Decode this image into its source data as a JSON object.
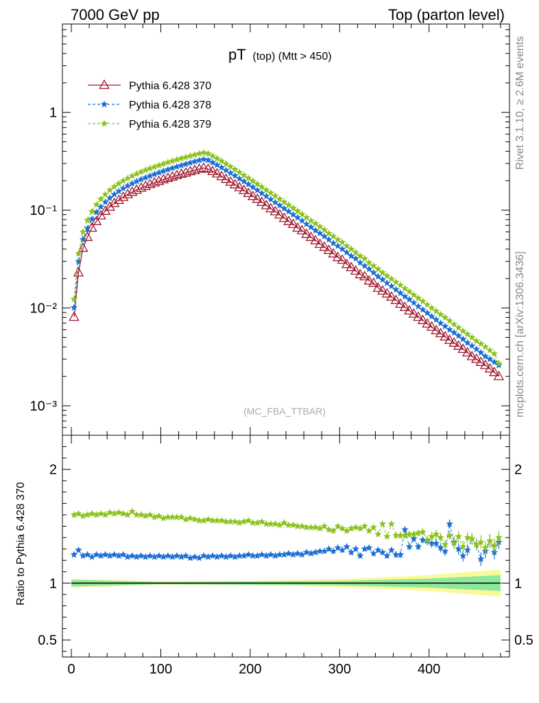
{
  "header": {
    "left": "7000 GeV pp",
    "right": "Top (parton level)"
  },
  "side_labels": {
    "rivet": "Rivet 3.1.10, ≥ 2.6M events",
    "source": "mcplots.cern.ch [arXiv:1306.3436]"
  },
  "colors": {
    "s370": "#a0192d",
    "s378": "#1a6fd4",
    "s379": "#8cc21e",
    "band_inner": "#8de89c",
    "band_outer": "#fafa9a"
  },
  "chart_data": [
    {
      "type": "line",
      "title": "pT",
      "title_sub": "(top) (Mtt > 450)",
      "watermark": "(MC_FBA_TTBAR)",
      "xlim": [
        -10,
        490
      ],
      "ylim": [
        0.0005,
        8
      ],
      "yscale": "log",
      "ytick_labels": [
        "10⁻³",
        "10⁻²",
        "10⁻¹",
        "1"
      ],
      "ytick_values": [
        0.001,
        0.01,
        0.1,
        1
      ],
      "legend_position": "top-left",
      "x": [
        3,
        8,
        13,
        18,
        23,
        28,
        33,
        38,
        43,
        48,
        53,
        58,
        63,
        68,
        73,
        78,
        83,
        88,
        93,
        98,
        103,
        108,
        113,
        118,
        123,
        128,
        133,
        138,
        143,
        148,
        153,
        158,
        163,
        168,
        173,
        178,
        183,
        188,
        193,
        198,
        203,
        208,
        213,
        218,
        223,
        228,
        233,
        238,
        243,
        248,
        253,
        258,
        263,
        268,
        273,
        278,
        283,
        288,
        293,
        298,
        303,
        308,
        313,
        318,
        323,
        328,
        333,
        338,
        343,
        348,
        353,
        358,
        363,
        368,
        373,
        378,
        383,
        388,
        393,
        398,
        403,
        408,
        413,
        418,
        423,
        428,
        433,
        438,
        443,
        448,
        453,
        458,
        463,
        468,
        473,
        478
      ],
      "series": [
        {
          "name": "Pythia 6.428 370",
          "values": [
            0.0081,
            0.023,
            0.041,
            0.053,
            0.066,
            0.077,
            0.088,
            0.098,
            0.108,
            0.118,
            0.127,
            0.136,
            0.145,
            0.153,
            0.161,
            0.169,
            0.176,
            0.184,
            0.191,
            0.198,
            0.206,
            0.213,
            0.22,
            0.227,
            0.234,
            0.241,
            0.249,
            0.256,
            0.264,
            0.27,
            0.264,
            0.25,
            0.236,
            0.222,
            0.208,
            0.195,
            0.183,
            0.171,
            0.16,
            0.149,
            0.139,
            0.13,
            0.121,
            0.112,
            0.104,
            0.097,
            0.09,
            0.083,
            0.077,
            0.072,
            0.066,
            0.062,
            0.057,
            0.053,
            0.049,
            0.045,
            0.042,
            0.039,
            0.036,
            0.033,
            0.031,
            0.028,
            0.026,
            0.024,
            0.022,
            0.021,
            0.019,
            0.018,
            0.016,
            0.015,
            0.014,
            0.013,
            0.012,
            0.011,
            0.0102,
            0.0094,
            0.0087,
            0.0081,
            0.0075,
            0.0069,
            0.0064,
            0.0059,
            0.0055,
            0.0051,
            0.0047,
            0.0044,
            0.0041,
            0.0038,
            0.0035,
            0.0032,
            0.003,
            0.0028,
            0.0026,
            0.0024,
            0.0022,
            0.002
          ]
        },
        {
          "name": "Pythia 6.428 378",
          "values": [
            0.0101,
            0.03,
            0.05,
            0.065,
            0.081,
            0.095,
            0.108,
            0.121,
            0.133,
            0.145,
            0.156,
            0.167,
            0.177,
            0.187,
            0.197,
            0.206,
            0.215,
            0.224,
            0.233,
            0.242,
            0.251,
            0.26,
            0.269,
            0.278,
            0.287,
            0.296,
            0.305,
            0.314,
            0.323,
            0.331,
            0.324,
            0.307,
            0.29,
            0.273,
            0.256,
            0.24,
            0.225,
            0.21,
            0.197,
            0.184,
            0.172,
            0.16,
            0.149,
            0.139,
            0.129,
            0.12,
            0.112,
            0.104,
            0.097,
            0.09,
            0.084,
            0.078,
            0.072,
            0.067,
            0.062,
            0.058,
            0.054,
            0.05,
            0.046,
            0.043,
            0.04,
            0.037,
            0.034,
            0.032,
            0.029,
            0.027,
            0.025,
            0.023,
            0.021,
            0.0195,
            0.018,
            0.0167,
            0.0154,
            0.0142,
            0.0131,
            0.0122,
            0.0113,
            0.0104,
            0.0096,
            0.0089,
            0.0082,
            0.0076,
            0.007,
            0.0065,
            0.006,
            0.0056,
            0.0052,
            0.0048,
            0.0044,
            0.0041,
            0.0038,
            0.0035,
            0.0032,
            0.003,
            0.0028,
            0.0026
          ]
        },
        {
          "name": "Pythia 6.428 379",
          "values": [
            0.0123,
            0.036,
            0.06,
            0.079,
            0.097,
            0.114,
            0.13,
            0.145,
            0.16,
            0.174,
            0.187,
            0.2,
            0.212,
            0.224,
            0.235,
            0.246,
            0.257,
            0.267,
            0.277,
            0.287,
            0.298,
            0.308,
            0.318,
            0.328,
            0.338,
            0.348,
            0.358,
            0.368,
            0.378,
            0.387,
            0.378,
            0.358,
            0.338,
            0.318,
            0.298,
            0.279,
            0.261,
            0.244,
            0.228,
            0.213,
            0.199,
            0.185,
            0.173,
            0.161,
            0.15,
            0.14,
            0.13,
            0.121,
            0.113,
            0.105,
            0.098,
            0.091,
            0.084,
            0.078,
            0.073,
            0.068,
            0.063,
            0.058,
            0.054,
            0.05,
            0.047,
            0.043,
            0.04,
            0.037,
            0.034,
            0.032,
            0.029,
            0.027,
            0.025,
            0.023,
            0.0213,
            0.0198,
            0.0184,
            0.0171,
            0.0158,
            0.0147,
            0.0136,
            0.0126,
            0.0117,
            0.0108,
            0.01,
            0.0093,
            0.0086,
            0.008,
            0.0074,
            0.0068,
            0.0063,
            0.0058,
            0.0054,
            0.005,
            0.0046,
            0.0043,
            0.004,
            0.0037,
            0.0034,
            0.0027
          ]
        }
      ]
    },
    {
      "type": "scatter",
      "ylabel": "Ratio to Pythia 6.428 370",
      "xlim": [
        -10,
        490
      ],
      "ylim": [
        0.35,
        2.3
      ],
      "xtick_labels": [
        "0",
        "100",
        "200",
        "300",
        "400"
      ],
      "xtick_values": [
        0,
        100,
        200,
        300,
        400
      ],
      "ytick_labels": [
        "0.5",
        "1",
        "2"
      ],
      "ytick_values": [
        0.5,
        1,
        2
      ],
      "x": [
        3,
        8,
        13,
        18,
        23,
        28,
        33,
        38,
        43,
        48,
        53,
        58,
        63,
        68,
        73,
        78,
        83,
        88,
        93,
        98,
        103,
        108,
        113,
        118,
        123,
        128,
        133,
        138,
        143,
        148,
        153,
        158,
        163,
        168,
        173,
        178,
        183,
        188,
        193,
        198,
        203,
        208,
        213,
        218,
        223,
        228,
        233,
        238,
        243,
        248,
        253,
        258,
        263,
        268,
        273,
        278,
        283,
        288,
        293,
        298,
        303,
        308,
        313,
        318,
        323,
        328,
        333,
        338,
        343,
        348,
        353,
        358,
        363,
        368,
        373,
        378,
        383,
        388,
        393,
        398,
        403,
        408,
        413,
        418,
        423,
        428,
        433,
        438,
        443,
        448,
        453,
        458,
        463,
        468,
        473,
        478
      ],
      "series": [
        {
          "name": "Pythia 6.428 378",
          "values": [
            1.25,
            1.29,
            1.24,
            1.25,
            1.23,
            1.25,
            1.24,
            1.25,
            1.24,
            1.25,
            1.24,
            1.25,
            1.23,
            1.24,
            1.23,
            1.24,
            1.23,
            1.24,
            1.23,
            1.24,
            1.23,
            1.24,
            1.23,
            1.24,
            1.23,
            1.24,
            1.22,
            1.23,
            1.22,
            1.24,
            1.23,
            1.24,
            1.23,
            1.24,
            1.23,
            1.24,
            1.23,
            1.24,
            1.24,
            1.25,
            1.24,
            1.24,
            1.25,
            1.24,
            1.25,
            1.24,
            1.25,
            1.25,
            1.26,
            1.25,
            1.26,
            1.25,
            1.27,
            1.26,
            1.27,
            1.28,
            1.28,
            1.3,
            1.28,
            1.31,
            1.29,
            1.32,
            1.27,
            1.3,
            1.24,
            1.3,
            1.31,
            1.26,
            1.29,
            1.27,
            1.24,
            1.29,
            1.25,
            1.25,
            1.47,
            1.32,
            1.39,
            1.32,
            1.38,
            1.37,
            1.35,
            1.35,
            1.31,
            1.28,
            1.52,
            1.36,
            1.3,
            1.24,
            1.29,
            1.39,
            1.34,
            1.21,
            1.28,
            1.37,
            1.27,
            1.36
          ],
          "err": [
            0.02,
            0.02,
            0.01,
            0.01,
            0.01,
            0.01,
            0.01,
            0.01,
            0.01,
            0.01,
            0.01,
            0.01,
            0.01,
            0.01,
            0.01,
            0.01,
            0.01,
            0.01,
            0.01,
            0.01,
            0.01,
            0.01,
            0.01,
            0.01,
            0.01,
            0.01,
            0.01,
            0.01,
            0.01,
            0.01,
            0.01,
            0.01,
            0.01,
            0.01,
            0.01,
            0.01,
            0.01,
            0.01,
            0.01,
            0.01,
            0.01,
            0.01,
            0.01,
            0.01,
            0.01,
            0.01,
            0.01,
            0.01,
            0.01,
            0.01,
            0.01,
            0.01,
            0.01,
            0.01,
            0.01,
            0.01,
            0.01,
            0.02,
            0.02,
            0.02,
            0.02,
            0.02,
            0.02,
            0.02,
            0.02,
            0.02,
            0.02,
            0.02,
            0.02,
            0.02,
            0.02,
            0.02,
            0.03,
            0.03,
            0.03,
            0.03,
            0.03,
            0.03,
            0.03,
            0.04,
            0.04,
            0.04,
            0.04,
            0.04,
            0.04,
            0.05,
            0.05,
            0.05,
            0.05,
            0.05,
            0.05,
            0.06,
            0.06,
            0.06,
            0.06,
            0.06
          ]
        },
        {
          "name": "Pythia 6.428 379",
          "values": [
            1.6,
            1.61,
            1.59,
            1.6,
            1.61,
            1.6,
            1.61,
            1.6,
            1.62,
            1.61,
            1.62,
            1.61,
            1.6,
            1.63,
            1.6,
            1.6,
            1.59,
            1.6,
            1.58,
            1.59,
            1.57,
            1.58,
            1.58,
            1.58,
            1.58,
            1.56,
            1.57,
            1.56,
            1.55,
            1.55,
            1.56,
            1.55,
            1.55,
            1.55,
            1.54,
            1.54,
            1.54,
            1.53,
            1.54,
            1.55,
            1.53,
            1.53,
            1.54,
            1.52,
            1.52,
            1.52,
            1.51,
            1.53,
            1.51,
            1.51,
            1.5,
            1.5,
            1.49,
            1.49,
            1.49,
            1.48,
            1.5,
            1.47,
            1.46,
            1.5,
            1.48,
            1.46,
            1.48,
            1.49,
            1.48,
            1.5,
            1.46,
            1.49,
            1.43,
            1.52,
            1.41,
            1.52,
            1.42,
            1.42,
            1.42,
            1.43,
            1.43,
            1.44,
            1.45,
            1.38,
            1.41,
            1.43,
            1.4,
            1.34,
            1.42,
            1.35,
            1.41,
            1.32,
            1.4,
            1.39,
            1.34,
            1.36,
            1.31,
            1.37,
            1.33,
            1.4
          ],
          "err": [
            0.02,
            0.02,
            0.01,
            0.01,
            0.01,
            0.01,
            0.01,
            0.01,
            0.01,
            0.01,
            0.01,
            0.01,
            0.01,
            0.01,
            0.01,
            0.01,
            0.01,
            0.01,
            0.01,
            0.01,
            0.01,
            0.01,
            0.01,
            0.01,
            0.01,
            0.01,
            0.01,
            0.01,
            0.01,
            0.01,
            0.01,
            0.01,
            0.01,
            0.01,
            0.01,
            0.01,
            0.01,
            0.01,
            0.01,
            0.01,
            0.01,
            0.01,
            0.01,
            0.01,
            0.01,
            0.01,
            0.01,
            0.01,
            0.01,
            0.01,
            0.01,
            0.01,
            0.01,
            0.01,
            0.01,
            0.01,
            0.01,
            0.02,
            0.02,
            0.02,
            0.02,
            0.02,
            0.02,
            0.02,
            0.02,
            0.02,
            0.02,
            0.02,
            0.02,
            0.02,
            0.02,
            0.02,
            0.03,
            0.03,
            0.03,
            0.03,
            0.03,
            0.03,
            0.03,
            0.04,
            0.04,
            0.04,
            0.04,
            0.04,
            0.04,
            0.05,
            0.05,
            0.05,
            0.05,
            0.05,
            0.05,
            0.06,
            0.06,
            0.06,
            0.06,
            0.06
          ]
        }
      ],
      "reference_band": {
        "x": [
          0,
          100,
          200,
          300,
          400,
          480
        ],
        "inner": [
          0.03,
          0.01,
          0.015,
          0.02,
          0.04,
          0.07
        ],
        "outer": [
          0.04,
          0.015,
          0.02,
          0.035,
          0.07,
          0.12
        ]
      }
    }
  ]
}
